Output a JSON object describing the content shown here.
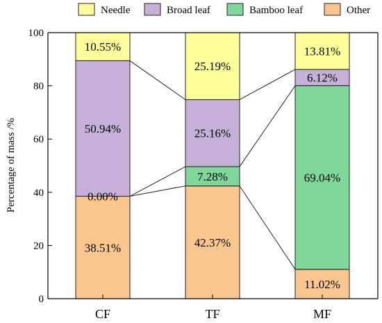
{
  "chart_data": {
    "type": "bar",
    "stacked": true,
    "categories": [
      "CF",
      "TF",
      "MF"
    ],
    "series": [
      {
        "name": "Other",
        "color": "#F9C690",
        "values": [
          38.51,
          42.37,
          11.02
        ],
        "labels": [
          "38.51%",
          "42.37%",
          "11.02%"
        ]
      },
      {
        "name": "Bamboo leaf",
        "color": "#7FD79B",
        "values": [
          0.0,
          7.28,
          69.04
        ],
        "labels": [
          "0.00%",
          "7.28%",
          "69.04%"
        ]
      },
      {
        "name": "Broad leaf",
        "color": "#C7B0D8",
        "values": [
          50.94,
          25.16,
          6.12
        ],
        "labels": [
          "50.94%",
          "25.16%",
          "6.12%"
        ]
      },
      {
        "name": "Needle",
        "color": "#FEFE9B",
        "values": [
          10.55,
          25.19,
          13.81
        ],
        "labels": [
          "10.55%",
          "25.19%",
          "13.81%"
        ]
      }
    ],
    "legend_order": [
      "Needle",
      "Broad leaf",
      "Bamboo leaf",
      "Other"
    ],
    "legend_placement": "top",
    "ylabel": "Percentage of mass /%",
    "xlabel": "",
    "ylim": [
      0,
      100
    ],
    "yticks": [
      0,
      20,
      40,
      60,
      80,
      100
    ],
    "grid": false,
    "connector_lines": true
  }
}
